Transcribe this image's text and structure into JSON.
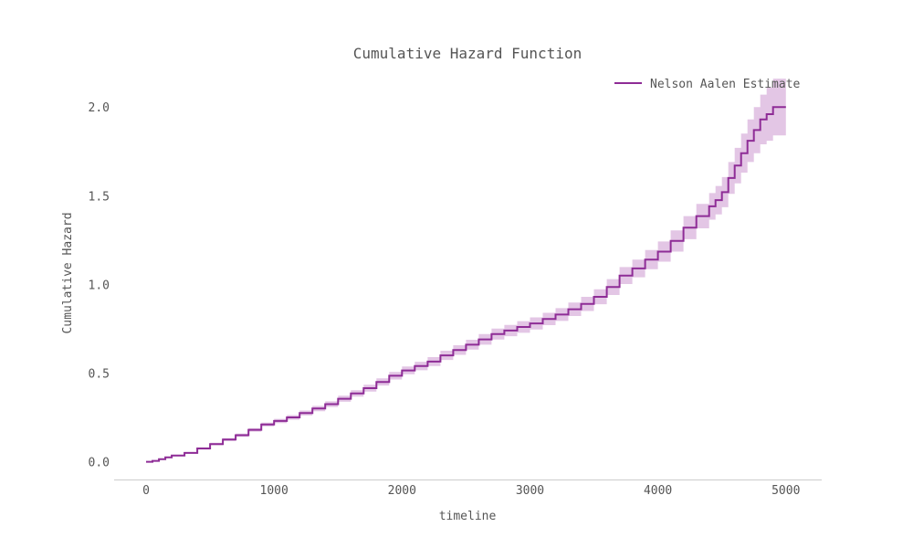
{
  "chart_data": {
    "type": "line",
    "title": "Cumulative Hazard Function",
    "xlabel": "timeline",
    "ylabel": "Cumulative Hazard",
    "xlim": [
      -250,
      5280
    ],
    "ylim": [
      -0.1,
      2.14
    ],
    "x_ticks": [
      0,
      1000,
      2000,
      3000,
      4000,
      5000
    ],
    "x_tick_labels": [
      "0",
      "1000",
      "2000",
      "3000",
      "4000",
      "5000"
    ],
    "y_ticks": [
      0.0,
      0.5,
      1.0,
      1.5,
      2.0
    ],
    "y_tick_labels": [
      "0.0",
      "0.5",
      "1.0",
      "1.5",
      "2.0"
    ],
    "grid": false,
    "legend": {
      "position": "top-right",
      "entries": [
        "Nelson Aalen Estimate"
      ]
    },
    "colors": {
      "line": "#8e2c96",
      "band": "#d9b3dc",
      "axis": "#cccccc",
      "text": "#555555"
    },
    "series": [
      {
        "name": "Nelson Aalen Estimate",
        "x": [
          0,
          50,
          100,
          150,
          200,
          300,
          400,
          500,
          600,
          700,
          800,
          900,
          1000,
          1100,
          1200,
          1300,
          1400,
          1500,
          1600,
          1700,
          1800,
          1900,
          2000,
          2100,
          2200,
          2300,
          2400,
          2500,
          2600,
          2700,
          2800,
          2900,
          3000,
          3100,
          3200,
          3300,
          3400,
          3500,
          3600,
          3700,
          3800,
          3900,
          4000,
          4100,
          4200,
          4300,
          4400,
          4450,
          4500,
          4550,
          4600,
          4650,
          4700,
          4750,
          4800,
          4850,
          4900,
          4950,
          5000
        ],
        "y": [
          0.0,
          0.005,
          0.015,
          0.025,
          0.035,
          0.05,
          0.075,
          0.1,
          0.125,
          0.15,
          0.18,
          0.21,
          0.23,
          0.25,
          0.275,
          0.3,
          0.325,
          0.355,
          0.385,
          0.415,
          0.45,
          0.485,
          0.515,
          0.54,
          0.565,
          0.6,
          0.63,
          0.66,
          0.69,
          0.72,
          0.74,
          0.76,
          0.78,
          0.805,
          0.83,
          0.86,
          0.89,
          0.93,
          0.985,
          1.05,
          1.09,
          1.14,
          1.185,
          1.245,
          1.32,
          1.385,
          1.44,
          1.475,
          1.52,
          1.6,
          1.67,
          1.74,
          1.81,
          1.87,
          1.93,
          1.96,
          2.0,
          2.0,
          2.0
        ],
        "lower": [
          0.0,
          0.004,
          0.012,
          0.022,
          0.031,
          0.045,
          0.069,
          0.093,
          0.117,
          0.141,
          0.17,
          0.199,
          0.218,
          0.237,
          0.261,
          0.285,
          0.309,
          0.338,
          0.367,
          0.396,
          0.43,
          0.464,
          0.493,
          0.516,
          0.54,
          0.574,
          0.603,
          0.632,
          0.66,
          0.689,
          0.708,
          0.727,
          0.746,
          0.77,
          0.794,
          0.822,
          0.85,
          0.888,
          0.94,
          1.002,
          1.04,
          1.086,
          1.128,
          1.185,
          1.255,
          1.316,
          1.365,
          1.395,
          1.435,
          1.51,
          1.57,
          1.63,
          1.69,
          1.74,
          1.79,
          1.81,
          1.84,
          1.84,
          1.84
        ],
        "upper": [
          0.0,
          0.006,
          0.018,
          0.028,
          0.039,
          0.055,
          0.081,
          0.107,
          0.133,
          0.159,
          0.19,
          0.221,
          0.242,
          0.263,
          0.289,
          0.315,
          0.341,
          0.372,
          0.403,
          0.434,
          0.47,
          0.506,
          0.537,
          0.564,
          0.59,
          0.626,
          0.657,
          0.688,
          0.72,
          0.751,
          0.772,
          0.793,
          0.814,
          0.84,
          0.866,
          0.898,
          0.93,
          0.972,
          1.03,
          1.098,
          1.14,
          1.194,
          1.242,
          1.305,
          1.385,
          1.454,
          1.515,
          1.555,
          1.605,
          1.69,
          1.77,
          1.85,
          1.93,
          2.0,
          2.07,
          2.11,
          2.16,
          2.16,
          2.16
        ]
      }
    ]
  }
}
